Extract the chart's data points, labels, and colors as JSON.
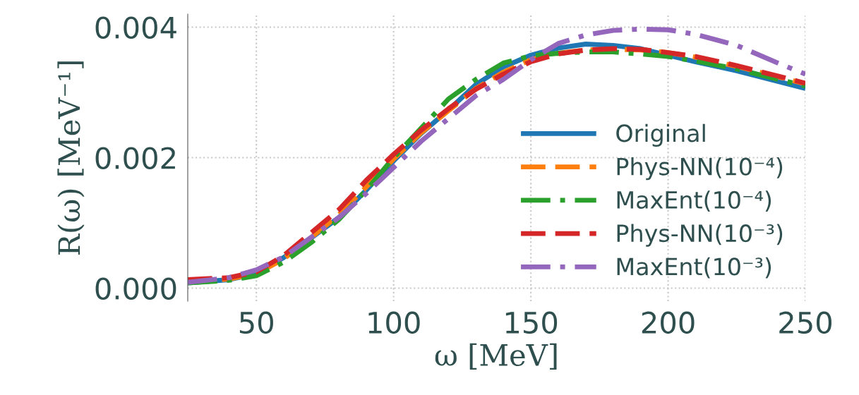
{
  "chart_data": {
    "type": "line",
    "xlabel": "ω [MeV]",
    "ylabel": "R(ω) [MeV⁻¹]",
    "x": [
      25,
      40,
      50,
      60,
      70,
      80,
      90,
      100,
      110,
      120,
      130,
      140,
      150,
      160,
      170,
      180,
      190,
      200,
      210,
      225,
      240,
      250
    ],
    "series": [
      {
        "name": "Original",
        "color": "#1f77b4",
        "line_style": "solid",
        "values": [
          8e-05,
          0.00013,
          0.00022,
          0.00047,
          0.00077,
          0.00108,
          0.0015,
          0.00195,
          0.00237,
          0.00273,
          0.00312,
          0.00339,
          0.00357,
          0.00368,
          0.00374,
          0.00372,
          0.00367,
          0.00357,
          0.00347,
          0.00333,
          0.00317,
          0.00306
        ]
      },
      {
        "name": "Phys-NN(10⁻⁴)",
        "color": "#ff7f0e",
        "line_style": "dashed",
        "values": [
          0.0001,
          0.00014,
          0.00022,
          0.00045,
          0.00078,
          0.00112,
          0.00155,
          0.00198,
          0.00238,
          0.00272,
          0.00306,
          0.00331,
          0.0035,
          0.0036,
          0.00365,
          0.00366,
          0.00365,
          0.00361,
          0.00354,
          0.0034,
          0.00324,
          0.00313
        ]
      },
      {
        "name": "MaxEnt(10⁻⁴)",
        "color": "#2ca02c",
        "line_style": "dashdot",
        "values": [
          8e-05,
          0.00012,
          0.00019,
          0.0004,
          0.0007,
          0.00105,
          0.0015,
          0.002,
          0.00245,
          0.0029,
          0.0032,
          0.00345,
          0.00356,
          0.0036,
          0.00362,
          0.00362,
          0.00359,
          0.00355,
          0.00348,
          0.00336,
          0.0032,
          0.0031
        ]
      },
      {
        "name": "Phys-NN(10⁻³)",
        "color": "#d62728",
        "line_style": "dashed",
        "values": [
          0.00013,
          0.00016,
          0.00025,
          0.0005,
          0.00085,
          0.0012,
          0.00165,
          0.00205,
          0.00242,
          0.00275,
          0.00305,
          0.00328,
          0.00347,
          0.00359,
          0.00365,
          0.00367,
          0.00366,
          0.00361,
          0.00355,
          0.00341,
          0.00325,
          0.00314
        ]
      },
      {
        "name": "MaxEnt(10⁻³)",
        "color": "#9467bd",
        "line_style": "dashdot",
        "values": [
          9e-05,
          0.00016,
          0.00028,
          0.00048,
          0.00078,
          0.00108,
          0.00145,
          0.00185,
          0.00225,
          0.0026,
          0.00295,
          0.0032,
          0.0035,
          0.00375,
          0.00388,
          0.00395,
          0.00397,
          0.00396,
          0.00389,
          0.00372,
          0.00345,
          0.00328
        ]
      }
    ],
    "xlim": [
      25,
      250
    ],
    "xticks": [
      50,
      100,
      150,
      200,
      250
    ],
    "ylim": [
      -0.0002,
      0.0042
    ],
    "yticks": [
      {
        "value": 0,
        "label": "0.000"
      },
      {
        "value": 0.002,
        "label": "0.002"
      },
      {
        "value": 0.004,
        "label": "0.004"
      }
    ],
    "grid": true,
    "legend": "bottom right"
  }
}
